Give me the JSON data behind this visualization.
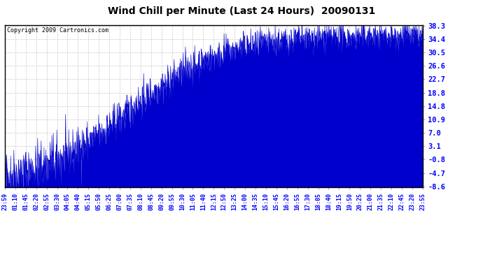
{
  "title": "Wind Chill per Minute (Last 24 Hours)  20090131",
  "copyright": "Copyright 2009 Cartronics.com",
  "yticks": [
    38.3,
    34.4,
    30.5,
    26.6,
    22.7,
    18.8,
    14.8,
    10.9,
    7.0,
    3.1,
    -0.8,
    -4.7,
    -8.6
  ],
  "ymin": -8.6,
  "ymax": 38.3,
  "line_color": "#0000cc",
  "background_color": "#ffffff",
  "grid_color": "#bbbbbb",
  "xtick_labels": [
    "23:59",
    "01:10",
    "01:45",
    "02:20",
    "02:55",
    "03:30",
    "04:05",
    "04:40",
    "05:15",
    "05:50",
    "06:25",
    "07:00",
    "07:35",
    "08:10",
    "08:45",
    "09:20",
    "09:55",
    "10:30",
    "11:05",
    "11:40",
    "12:15",
    "12:50",
    "13:25",
    "14:00",
    "14:35",
    "15:10",
    "15:45",
    "16:20",
    "16:55",
    "17:30",
    "18:05",
    "18:40",
    "19:15",
    "19:50",
    "20:25",
    "21:00",
    "21:35",
    "22:10",
    "22:45",
    "23:20",
    "23:55"
  ],
  "num_points": 1440,
  "seed": 42
}
